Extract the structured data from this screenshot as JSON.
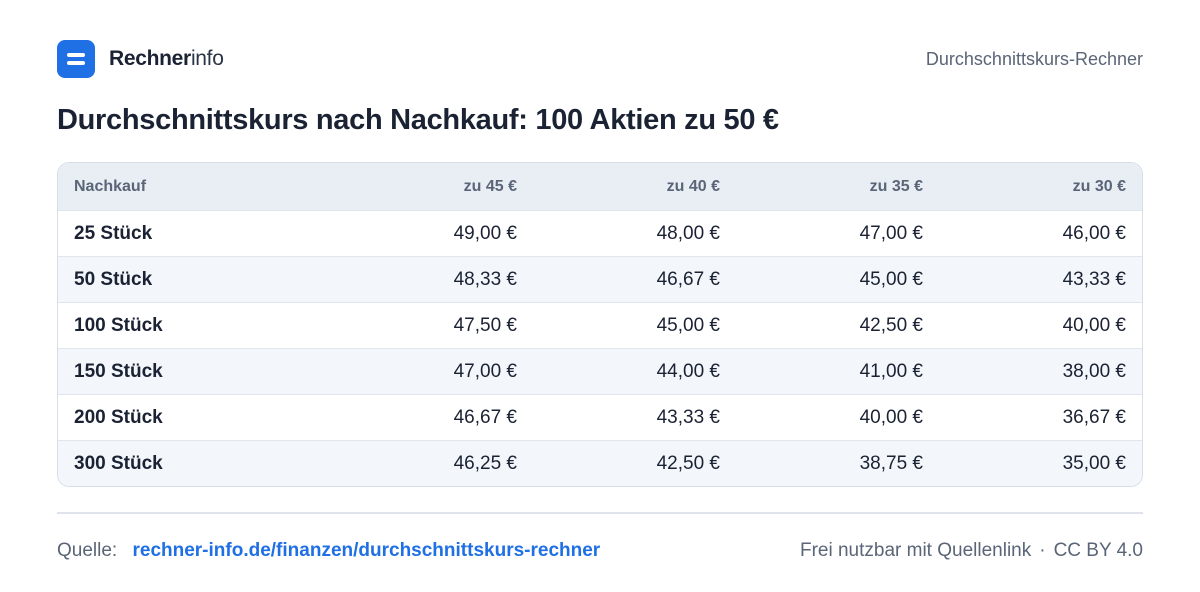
{
  "brand": {
    "name_strong": "Rechner",
    "name_light": "info"
  },
  "header": {
    "right_text": "Durchschnittskurs-Rechner"
  },
  "title": "Durchschnittskurs nach Nachkauf: 100 Aktien zu 50 €",
  "table": {
    "columns": [
      "Nachkauf",
      "zu 45 €",
      "zu 40 €",
      "zu 35 €",
      "zu 30 €"
    ],
    "rows": [
      [
        "25 Stück",
        "49,00 €",
        "48,00 €",
        "47,00 €",
        "46,00 €"
      ],
      [
        "50 Stück",
        "48,33 €",
        "46,67 €",
        "45,00 €",
        "43,33 €"
      ],
      [
        "100 Stück",
        "47,50 €",
        "45,00 €",
        "42,50 €",
        "40,00 €"
      ],
      [
        "150 Stück",
        "47,00 €",
        "44,00 €",
        "41,00 €",
        "38,00 €"
      ],
      [
        "200 Stück",
        "46,67 €",
        "43,33 €",
        "40,00 €",
        "36,67 €"
      ],
      [
        "300 Stück",
        "46,25 €",
        "42,50 €",
        "38,75 €",
        "35,00 €"
      ]
    ]
  },
  "footer": {
    "source_label": "Quelle:",
    "source_link": "rechner-info.de/finanzen/durchschnittskurs-rechner",
    "license_text": "Frei nutzbar mit Quellenlink",
    "separator": "·",
    "license": "CC BY 4.0"
  },
  "colors": {
    "accent": "#1f6fe5",
    "header_bg": "#e9eef5",
    "stripe_bg": "#f3f6fa"
  },
  "icons": {
    "logo": "rechnerinfo-logo-icon"
  }
}
